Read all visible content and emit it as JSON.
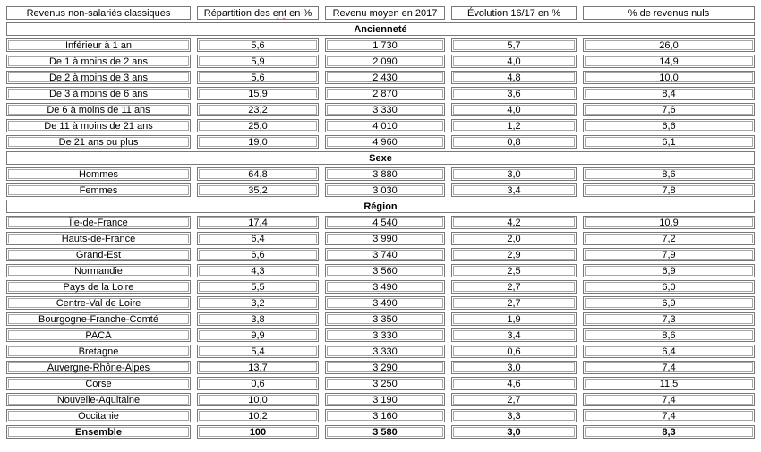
{
  "page": {
    "background": "#ffffff"
  },
  "table": {
    "border_color": "#787878",
    "inner_border_color": "#a6a6a6",
    "spellcheck_color": "#e31f1f",
    "columns": [
      {
        "label": "Revenus non-salariés classiques"
      },
      {
        "label": "Répartition des ent en %",
        "parts": {
          "prefix": "Répartition des ",
          "misspelled": "ent",
          "suffix": " en %"
        }
      },
      {
        "label": "Revenu moyen en 2017"
      },
      {
        "label": "Évolution 16/17 en %"
      },
      {
        "label": "% de revenus nuls"
      }
    ],
    "sections": [
      {
        "title": "Ancienneté",
        "rows": [
          [
            "Inférieur à 1 an",
            "5,6",
            "1 730",
            "5,7",
            "26,0"
          ],
          [
            "De 1 à moins de 2 ans",
            "5,9",
            "2 090",
            "4,0",
            "14,9"
          ],
          [
            "De 2 à moins de 3 ans",
            "5,6",
            "2 430",
            "4,8",
            "10,0"
          ],
          [
            "De 3 à moins de 6 ans",
            "15,9",
            "2 870",
            "3,6",
            "8,4"
          ],
          [
            "De 6 à moins de 11 ans",
            "23,2",
            "3 330",
            "4,0",
            "7,6"
          ],
          [
            "De 11 à moins de 21 ans",
            "25,0",
            "4 010",
            "1,2",
            "6,6"
          ],
          [
            "De 21 ans ou plus",
            "19,0",
            "4 960",
            "0,8",
            "6,1"
          ]
        ]
      },
      {
        "title": "Sexe",
        "rows": [
          [
            "Hommes",
            "64,8",
            "3 880",
            "3,0",
            "8,6"
          ],
          [
            "Femmes",
            "35,2",
            "3 030",
            "3,4",
            "7,8"
          ]
        ]
      },
      {
        "title": "Région",
        "rows": [
          [
            "Île-de-France",
            "17,4",
            "4 540",
            "4,2",
            "10,9"
          ],
          [
            "Hauts-de-France",
            "6,4",
            "3 990",
            "2,0",
            "7,2"
          ],
          [
            "Grand-Est",
            "6,6",
            "3 740",
            "2,9",
            "7,9"
          ],
          [
            "Normandie",
            "4,3",
            "3 560",
            "2,5",
            "6,9"
          ],
          [
            "Pays de la Loire",
            "5,5",
            "3 490",
            "2,7",
            "6,0"
          ],
          [
            "Centre-Val de Loire",
            "3,2",
            "3 490",
            "2,7",
            "6,9"
          ],
          [
            "Bourgogne-Franche-Comté",
            "3,8",
            "3 350",
            "1,9",
            "7,3"
          ],
          [
            "PACA",
            "9,9",
            "3 330",
            "3,4",
            "8,6"
          ],
          [
            "Bretagne",
            "5,4",
            "3 330",
            "0,6",
            "6,4"
          ],
          [
            "Auvergne-Rhône-Alpes",
            "13,7",
            "3 290",
            "3,0",
            "7,4"
          ],
          [
            "Corse",
            "0,6",
            "3 250",
            "4,6",
            "11,5"
          ],
          [
            "Nouvelle-Aquitaine",
            "10,0",
            "3 190",
            "2,7",
            "7,4"
          ],
          [
            "Occitanie",
            "10,2",
            "3 160",
            "3,3",
            "7,4"
          ]
        ]
      }
    ],
    "total_row": {
      "label": "Ensemble",
      "values": [
        "100",
        "3 580",
        "3,0",
        "8,3"
      ]
    }
  }
}
